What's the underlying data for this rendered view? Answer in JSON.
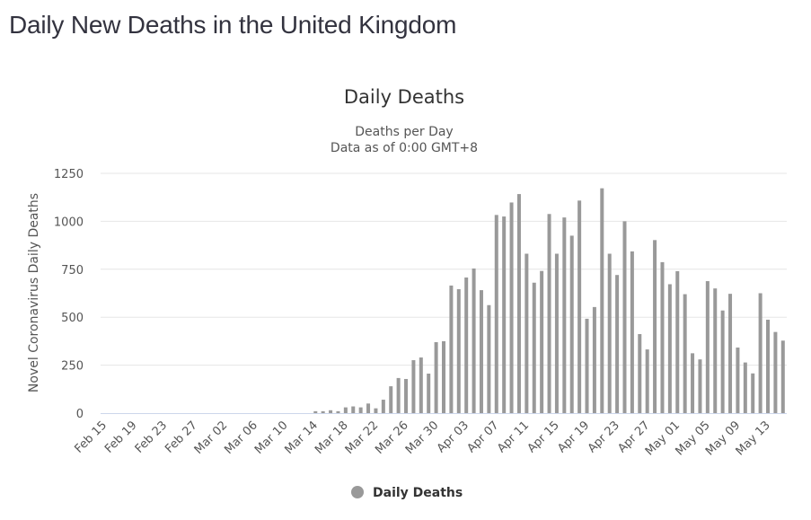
{
  "page": {
    "title": "Daily New Deaths in the United Kingdom"
  },
  "chart_data": {
    "type": "bar",
    "title": "Daily Deaths",
    "subtitle": [
      "Deaths per Day",
      "Data as of 0:00 GMT+8"
    ],
    "xlabel": "",
    "ylabel": "Novel Coronavirus Daily Deaths",
    "ylim": [
      0,
      1250
    ],
    "yticks": [
      0,
      250,
      500,
      750,
      1000,
      1250
    ],
    "grid": true,
    "legend": {
      "position": "bottom-center",
      "entries": [
        "Daily Deaths"
      ]
    },
    "colors": {
      "bar": "#999999",
      "grid": "#e6e6e6",
      "axis": "#ccd6eb"
    },
    "xtick_labels": [
      "Feb 15",
      "Feb 19",
      "Feb 23",
      "Feb 27",
      "Mar 02",
      "Mar 06",
      "Mar 10",
      "Mar 14",
      "Mar 18",
      "Mar 22",
      "Mar 26",
      "Mar 30",
      "Apr 03",
      "Apr 07",
      "Apr 11",
      "Apr 15",
      "Apr 19",
      "Apr 23",
      "Apr 27",
      "May 01",
      "May 05",
      "May 09",
      "May 13"
    ],
    "categories": [
      "Feb 15",
      "Feb 16",
      "Feb 17",
      "Feb 18",
      "Feb 19",
      "Feb 20",
      "Feb 21",
      "Feb 22",
      "Feb 23",
      "Feb 24",
      "Feb 25",
      "Feb 26",
      "Feb 27",
      "Feb 28",
      "Feb 29",
      "Mar 01",
      "Mar 02",
      "Mar 03",
      "Mar 04",
      "Mar 05",
      "Mar 06",
      "Mar 07",
      "Mar 08",
      "Mar 09",
      "Mar 10",
      "Mar 11",
      "Mar 12",
      "Mar 13",
      "Mar 14",
      "Mar 15",
      "Mar 16",
      "Mar 17",
      "Mar 18",
      "Mar 19",
      "Mar 20",
      "Mar 21",
      "Mar 22",
      "Mar 23",
      "Mar 24",
      "Mar 25",
      "Mar 26",
      "Mar 27",
      "Mar 28",
      "Mar 29",
      "Mar 30",
      "Mar 31",
      "Apr 01",
      "Apr 02",
      "Apr 03",
      "Apr 04",
      "Apr 05",
      "Apr 06",
      "Apr 07",
      "Apr 08",
      "Apr 09",
      "Apr 10",
      "Apr 11",
      "Apr 12",
      "Apr 13",
      "Apr 14",
      "Apr 15",
      "Apr 16",
      "Apr 17",
      "Apr 18",
      "Apr 19",
      "Apr 20",
      "Apr 21",
      "Apr 22",
      "Apr 23",
      "Apr 24",
      "Apr 25",
      "Apr 26",
      "Apr 27",
      "Apr 28",
      "Apr 29",
      "Apr 30",
      "May 01",
      "May 02",
      "May 03",
      "May 04",
      "May 05",
      "May 06",
      "May 07",
      "May 08",
      "May 09",
      "May 10",
      "May 11",
      "May 12",
      "May 13",
      "May 14",
      "May 15"
    ],
    "series": [
      {
        "name": "Daily Deaths",
        "values": [
          0,
          0,
          0,
          0,
          0,
          0,
          0,
          0,
          0,
          0,
          0,
          0,
          0,
          0,
          0,
          0,
          0,
          0,
          0,
          0,
          0,
          0,
          0,
          0,
          0,
          0,
          0,
          0,
          10,
          10,
          15,
          10,
          30,
          35,
          30,
          50,
          25,
          70,
          140,
          183,
          178,
          276,
          290,
          206,
          370,
          375,
          665,
          646,
          707,
          754,
          641,
          563,
          1033,
          1025,
          1098,
          1142,
          831,
          680,
          741,
          1038,
          831,
          1020,
          925,
          1108,
          492,
          553,
          1172,
          831,
          720,
          1000,
          843,
          412,
          332,
          902,
          787,
          672,
          740,
          620,
          312,
          280,
          688,
          650,
          535,
          622,
          342,
          264,
          207,
          625,
          487,
          423,
          378
        ]
      }
    ]
  }
}
